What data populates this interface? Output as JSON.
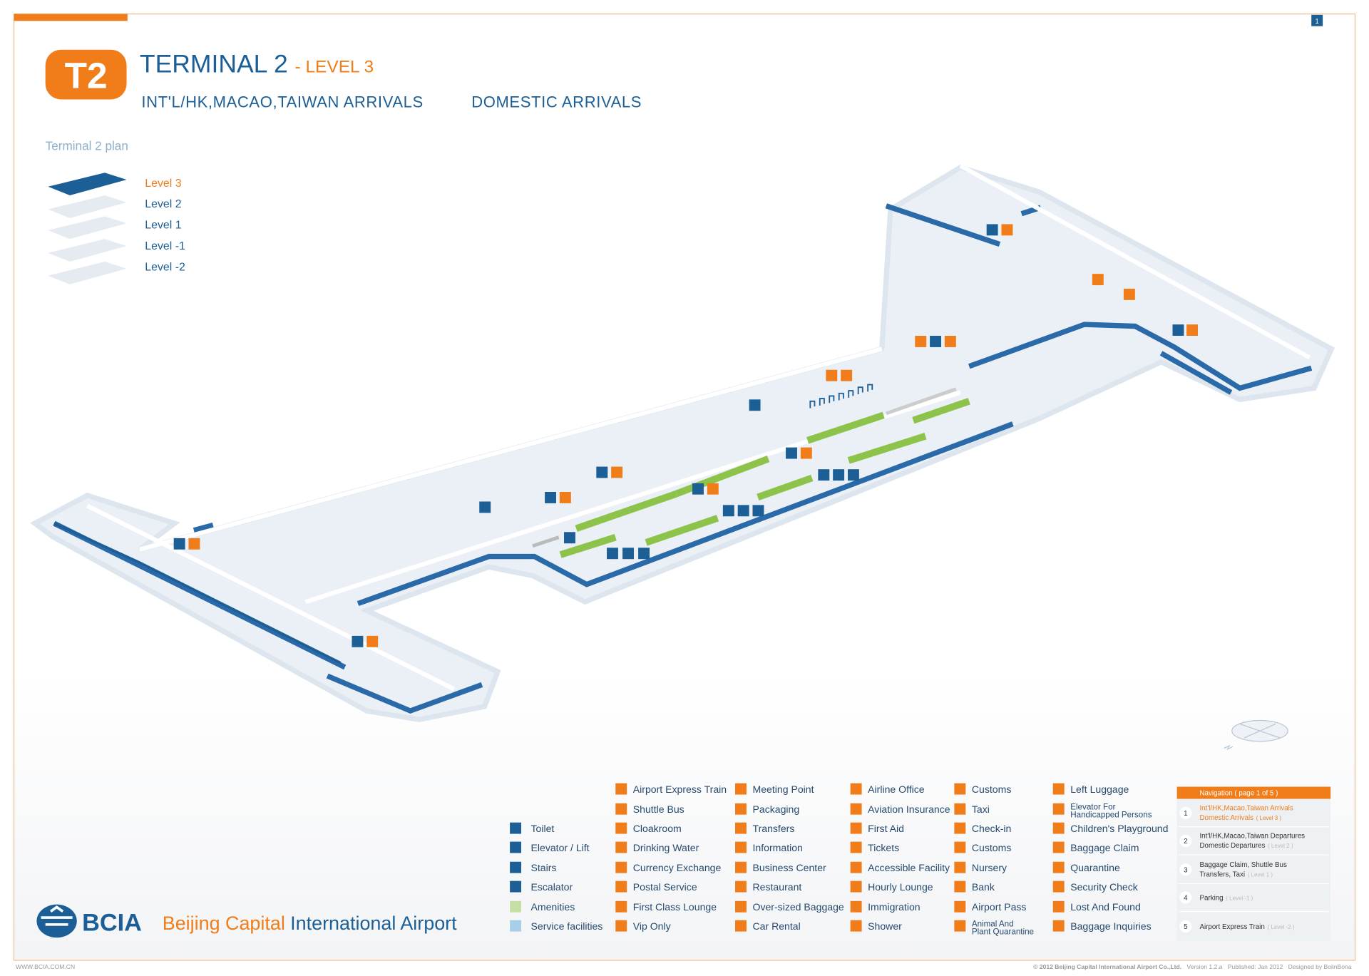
{
  "page_number": "1",
  "header": {
    "badge": "T2",
    "title": "TERMINAL 2",
    "subtitle": "- LEVEL 3",
    "sections": [
      "INT'L/HK,MACAO,TAIWAN ARRIVALS",
      "DOMESTIC ARRIVALS"
    ]
  },
  "plan": {
    "title": "Terminal 2 plan",
    "levels": [
      "Level 3",
      "Level 2",
      "Level 1",
      "Level -1",
      "Level -2"
    ]
  },
  "legend": {
    "basic": [
      "Toilet",
      "Elevator / Lift",
      "Stairs",
      "Escalator",
      "Amenities",
      "Service facilities"
    ],
    "columns": [
      [
        "Airport Express Train",
        "Shuttle Bus",
        "Cloakroom",
        "Drinking Water",
        "Currency Exchange",
        "Postal Service",
        "First Class Lounge",
        "Vip Only"
      ],
      [
        "Meeting Point",
        "Packaging",
        "Transfers",
        "Information",
        "Business Center",
        "Restaurant",
        "Over-sized Baggage",
        "Car Rental"
      ],
      [
        "Airline Office",
        "Aviation Insurance",
        "First Aid",
        "Tickets",
        "Accessible Facility",
        "Hourly Lounge",
        "Immigration",
        "Shower"
      ],
      [
        "Customs",
        "Taxi",
        "Check-in",
        "Customs",
        "Nursery",
        "Bank",
        "Airport Pass",
        "Animal And Plant Quarantine"
      ],
      [
        "Left Luggage",
        "Elevator For Handicapped Persons",
        "Children's Playground",
        "Baggage Claim",
        "Quarantine",
        "Security Check",
        "Lost And Found",
        "Baggage Inquiries"
      ]
    ]
  },
  "navigation": {
    "title": "Navigation ( page 1 of 5 )",
    "items": [
      {
        "number": "1",
        "lines": [
          "Int'l/HK,Macao,Taiwan Arrivals",
          "Domestic Arrivals"
        ],
        "level": "( Level 3 )"
      },
      {
        "number": "2",
        "lines": [
          "Int'l/HK,Macao,Taiwan Departures",
          "Domestic Departures"
        ],
        "level": "( Level 2 )"
      },
      {
        "number": "3",
        "lines": [
          "Baggage Claim,  Shuttle Bus",
          "Transfers,  Taxi"
        ],
        "level": "( Level 1 )"
      },
      {
        "number": "4",
        "lines": [
          "Parking"
        ],
        "level": "( Level -1 )"
      },
      {
        "number": "5",
        "lines": [
          "Airport Express Train"
        ],
        "level": "( Level -2 )"
      }
    ]
  },
  "brand": {
    "logo": "BCIA",
    "name_a": "Beijing Capital",
    "name_b": "International Airport"
  },
  "footer": {
    "url": "WWW.BCIA.COM.CN",
    "copyright": "© 2012 Beijing Capital International Airport Co.,Ltd.",
    "version": "Version 1.2.a",
    "published": "Published: Jan 2012",
    "designer": "Designed by BolinBona"
  }
}
